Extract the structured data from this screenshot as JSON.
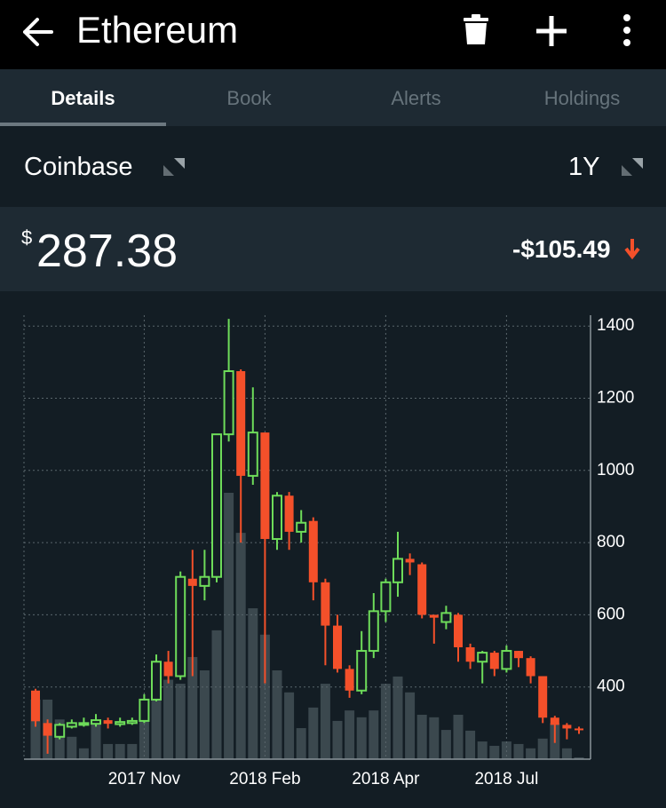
{
  "header": {
    "title": "Ethereum"
  },
  "tabs": [
    "Details",
    "Book",
    "Alerts",
    "Holdings"
  ],
  "exchange": "Coinbase",
  "range": "1Y",
  "price": {
    "currency": "$",
    "value": "287.38"
  },
  "change": "-$105.49",
  "chart_data": {
    "type": "candlestick",
    "categories": [
      null,
      null,
      null,
      null,
      null,
      null,
      null,
      null,
      null,
      "2017 Nov",
      null,
      null,
      null,
      null,
      null,
      null,
      null,
      null,
      null,
      "2018 Feb",
      null,
      null,
      null,
      null,
      null,
      null,
      null,
      null,
      null,
      "2018 Apr",
      null,
      null,
      null,
      null,
      null,
      null,
      null,
      null,
      null,
      "2018 Jul",
      null,
      null,
      null,
      null,
      null,
      null
    ],
    "open": [
      390,
      300,
      262,
      290,
      295,
      298,
      308,
      297,
      300,
      306,
      365,
      470,
      430,
      700,
      680,
      705,
      1100,
      1275,
      985,
      1105,
      810,
      930,
      830,
      860,
      690,
      570,
      450,
      390,
      500,
      610,
      690,
      755,
      740,
      600,
      580,
      600,
      510,
      470,
      495,
      450,
      500,
      480,
      430,
      315,
      295,
      285
    ],
    "high": [
      395,
      310,
      300,
      310,
      315,
      325,
      315,
      315,
      315,
      380,
      490,
      500,
      720,
      780,
      780,
      1100,
      1420,
      1280,
      1230,
      1105,
      940,
      940,
      890,
      870,
      700,
      600,
      460,
      555,
      660,
      700,
      830,
      770,
      745,
      600,
      625,
      605,
      520,
      500,
      500,
      515,
      500,
      485,
      430,
      320,
      300,
      290
    ],
    "low": [
      290,
      215,
      255,
      285,
      290,
      290,
      285,
      290,
      295,
      300,
      360,
      410,
      420,
      430,
      640,
      690,
      1080,
      800,
      960,
      410,
      780,
      780,
      800,
      640,
      460,
      440,
      370,
      380,
      480,
      580,
      650,
      710,
      590,
      520,
      560,
      470,
      450,
      410,
      430,
      440,
      455,
      410,
      300,
      245,
      255,
      270
    ],
    "close": [
      305,
      265,
      295,
      300,
      300,
      308,
      298,
      303,
      306,
      365,
      470,
      430,
      705,
      680,
      705,
      1100,
      1275,
      985,
      1105,
      810,
      930,
      830,
      855,
      690,
      570,
      450,
      390,
      500,
      610,
      690,
      755,
      745,
      600,
      592,
      605,
      510,
      470,
      495,
      450,
      500,
      480,
      430,
      315,
      295,
      285,
      282
    ],
    "volume": [
      365,
      365,
      310,
      262,
      230,
      300,
      242,
      242,
      242,
      323,
      409,
      420,
      409,
      483,
      446,
      557,
      938,
      827,
      618,
      545,
      446,
      385,
      286,
      343,
      409,
      306,
      335,
      316,
      335,
      409,
      429,
      385,
      323,
      316,
      281,
      323,
      279,
      249,
      237,
      249,
      242,
      230,
      257,
      300,
      230,
      205
    ],
    "ylim": [
      200,
      1430
    ],
    "yticks": [
      400,
      600,
      800,
      1000,
      1200,
      1400
    ],
    "up_color": "#6edc5a",
    "down_color": "#f4502a",
    "volume_color": "#3b484e",
    "grid": true
  }
}
